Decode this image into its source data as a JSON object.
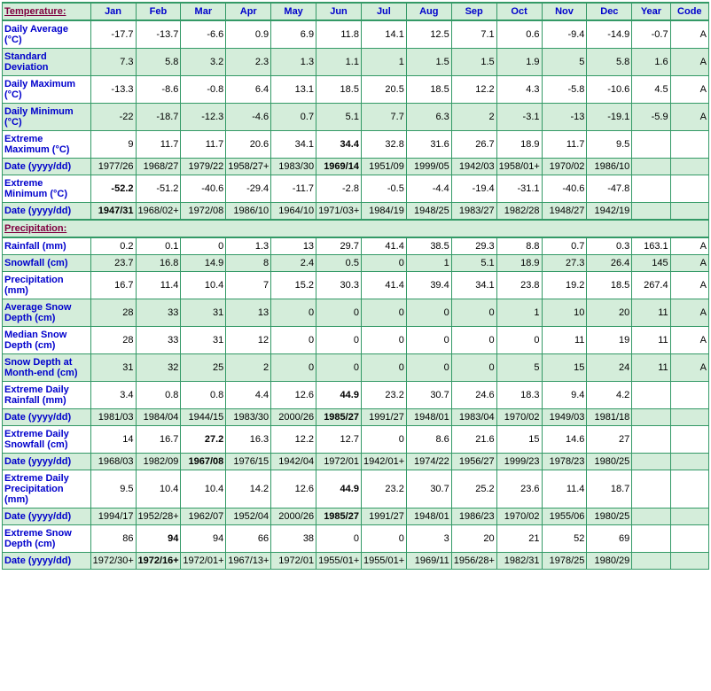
{
  "columns": [
    "Jan",
    "Feb",
    "Mar",
    "Apr",
    "May",
    "Jun",
    "Jul",
    "Aug",
    "Sep",
    "Oct",
    "Nov",
    "Dec",
    "Year",
    "Code"
  ],
  "sections": [
    {
      "title": "Temperature:",
      "rows": [
        {
          "label": "Daily Average (°C)",
          "stripe": "odd",
          "cells": [
            "-17.7",
            "-13.7",
            "-6.6",
            "0.9",
            "6.9",
            "11.8",
            "14.1",
            "12.5",
            "7.1",
            "0.6",
            "-9.4",
            "-14.9",
            "-0.7",
            "A"
          ]
        },
        {
          "label": "Standard Deviation",
          "stripe": "even",
          "cells": [
            "7.3",
            "5.8",
            "3.2",
            "2.3",
            "1.3",
            "1.1",
            "1",
            "1.5",
            "1.5",
            "1.9",
            "5",
            "5.8",
            "1.6",
            "A"
          ]
        },
        {
          "label": "Daily Maximum (°C)",
          "stripe": "odd",
          "cells": [
            "-13.3",
            "-8.6",
            "-0.8",
            "6.4",
            "13.1",
            "18.5",
            "20.5",
            "18.5",
            "12.2",
            "4.3",
            "-5.8",
            "-10.6",
            "4.5",
            "A"
          ]
        },
        {
          "label": "Daily Minimum (°C)",
          "stripe": "even",
          "cells": [
            "-22",
            "-18.7",
            "-12.3",
            "-4.6",
            "0.7",
            "5.1",
            "7.7",
            "6.3",
            "2",
            "-3.1",
            "-13",
            "-19.1",
            "-5.9",
            "A"
          ]
        },
        {
          "label": "Extreme Maximum (°C)",
          "stripe": "odd",
          "cells": [
            "9",
            "11.7",
            "11.7",
            "20.6",
            "34.1",
            "34.4",
            "32.8",
            "31.6",
            "26.7",
            "18.9",
            "11.7",
            "9.5",
            "",
            ""
          ],
          "bold": [
            5
          ]
        },
        {
          "label": "Date (yyyy/dd)",
          "stripe": "even",
          "cells": [
            "1977/26",
            "1968/27",
            "1979/22",
            "1958/27+",
            "1983/30",
            "1969/14",
            "1951/09",
            "1999/05",
            "1942/03",
            "1958/01+",
            "1970/02",
            "1986/10",
            "",
            ""
          ],
          "bold": [
            5
          ]
        },
        {
          "label": "Extreme Minimum (°C)",
          "stripe": "odd",
          "cells": [
            "-52.2",
            "-51.2",
            "-40.6",
            "-29.4",
            "-11.7",
            "-2.8",
            "-0.5",
            "-4.4",
            "-19.4",
            "-31.1",
            "-40.6",
            "-47.8",
            "",
            ""
          ],
          "bold": [
            0
          ]
        },
        {
          "label": "Date (yyyy/dd)",
          "stripe": "even",
          "cells": [
            "1947/31",
            "1968/02+",
            "1972/08",
            "1986/10",
            "1964/10",
            "1971/03+",
            "1984/19",
            "1948/25",
            "1983/27",
            "1982/28",
            "1948/27",
            "1942/19",
            "",
            ""
          ],
          "bold": [
            0
          ]
        }
      ]
    },
    {
      "title": "Precipitation:",
      "rows": [
        {
          "label": "Rainfall (mm)",
          "stripe": "odd",
          "cells": [
            "0.2",
            "0.1",
            "0",
            "1.3",
            "13",
            "29.7",
            "41.4",
            "38.5",
            "29.3",
            "8.8",
            "0.7",
            "0.3",
            "163.1",
            "A"
          ]
        },
        {
          "label": "Snowfall (cm)",
          "stripe": "even",
          "cells": [
            "23.7",
            "16.8",
            "14.9",
            "8",
            "2.4",
            "0.5",
            "0",
            "1",
            "5.1",
            "18.9",
            "27.3",
            "26.4",
            "145",
            "A"
          ]
        },
        {
          "label": "Precipitation (mm)",
          "stripe": "odd",
          "cells": [
            "16.7",
            "11.4",
            "10.4",
            "7",
            "15.2",
            "30.3",
            "41.4",
            "39.4",
            "34.1",
            "23.8",
            "19.2",
            "18.5",
            "267.4",
            "A"
          ]
        },
        {
          "label": "Average Snow Depth (cm)",
          "stripe": "even",
          "cells": [
            "28",
            "33",
            "31",
            "13",
            "0",
            "0",
            "0",
            "0",
            "0",
            "1",
            "10",
            "20",
            "11",
            "A"
          ]
        },
        {
          "label": "Median Snow Depth (cm)",
          "stripe": "odd",
          "cells": [
            "28",
            "33",
            "31",
            "12",
            "0",
            "0",
            "0",
            "0",
            "0",
            "0",
            "11",
            "19",
            "11",
            "A"
          ]
        },
        {
          "label": "Snow Depth at Month-end (cm)",
          "stripe": "even",
          "cells": [
            "31",
            "32",
            "25",
            "2",
            "0",
            "0",
            "0",
            "0",
            "0",
            "5",
            "15",
            "24",
            "11",
            "A"
          ]
        },
        {
          "label": "Extreme Daily Rainfall (mm)",
          "stripe": "odd",
          "cells": [
            "3.4",
            "0.8",
            "0.8",
            "4.4",
            "12.6",
            "44.9",
            "23.2",
            "30.7",
            "24.6",
            "18.3",
            "9.4",
            "4.2",
            "",
            ""
          ],
          "bold": [
            5
          ]
        },
        {
          "label": "Date (yyyy/dd)",
          "stripe": "even",
          "cells": [
            "1981/03",
            "1984/04",
            "1944/15",
            "1983/30",
            "2000/26",
            "1985/27",
            "1991/27",
            "1948/01",
            "1983/04",
            "1970/02",
            "1949/03",
            "1981/18",
            "",
            ""
          ],
          "bold": [
            5
          ]
        },
        {
          "label": "Extreme Daily Snowfall (cm)",
          "stripe": "odd",
          "cells": [
            "14",
            "16.7",
            "27.2",
            "16.3",
            "12.2",
            "12.7",
            "0",
            "8.6",
            "21.6",
            "15",
            "14.6",
            "27",
            "",
            ""
          ],
          "bold": [
            2
          ]
        },
        {
          "label": "Date (yyyy/dd)",
          "stripe": "even",
          "cells": [
            "1968/03",
            "1982/09",
            "1967/08",
            "1976/15",
            "1942/04",
            "1972/01",
            "1942/01+",
            "1974/22",
            "1956/27",
            "1999/23",
            "1978/23",
            "1980/25",
            "",
            ""
          ],
          "bold": [
            2
          ]
        },
        {
          "label": "Extreme Daily Precipitation (mm)",
          "stripe": "odd",
          "cells": [
            "9.5",
            "10.4",
            "10.4",
            "14.2",
            "12.6",
            "44.9",
            "23.2",
            "30.7",
            "25.2",
            "23.6",
            "11.4",
            "18.7",
            "",
            ""
          ],
          "bold": [
            5
          ]
        },
        {
          "label": "Date (yyyy/dd)",
          "stripe": "even",
          "cells": [
            "1994/17",
            "1952/28+",
            "1962/07",
            "1952/04",
            "2000/26",
            "1985/27",
            "1991/27",
            "1948/01",
            "1986/23",
            "1970/02",
            "1955/06",
            "1980/25",
            "",
            ""
          ],
          "bold": [
            5
          ]
        },
        {
          "label": "Extreme Snow Depth (cm)",
          "stripe": "odd",
          "cells": [
            "86",
            "94",
            "94",
            "66",
            "38",
            "0",
            "0",
            "3",
            "20",
            "21",
            "52",
            "69",
            "",
            ""
          ],
          "bold": [
            1
          ]
        },
        {
          "label": "Date (yyyy/dd)",
          "stripe": "even",
          "cells": [
            "1972/30+",
            "1972/16+",
            "1972/01+",
            "1967/13+",
            "1972/01",
            "1955/01+",
            "1955/01+",
            "1969/11",
            "1956/28+",
            "1982/31",
            "1978/25",
            "1980/29",
            "",
            ""
          ],
          "bold": [
            1
          ]
        }
      ]
    }
  ]
}
